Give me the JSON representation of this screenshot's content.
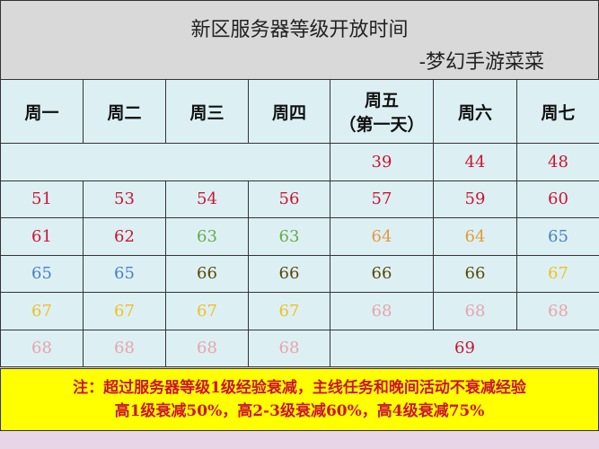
{
  "header": {
    "title": "新区服务器等级开放时间",
    "subtitle": "-梦幻手游菜菜"
  },
  "table": {
    "columns": [
      "周一",
      "周二",
      "周三",
      "周四",
      [
        "周五",
        "（第一天）"
      ],
      "周六",
      "周七"
    ],
    "rows": [
      [
        {
          "value": 39,
          "color": "#cc1430"
        },
        {
          "value": 44,
          "color": "#cc1430"
        },
        {
          "value": 48,
          "color": "#cc1430"
        }
      ],
      [
        {
          "value": 51,
          "color": "#cc1430"
        },
        {
          "value": 53,
          "color": "#cc1430"
        },
        {
          "value": 54,
          "color": "#cc1430"
        },
        {
          "value": 56,
          "color": "#cc1430"
        },
        {
          "value": 57,
          "color": "#cc1430"
        },
        {
          "value": 59,
          "color": "#cc1430"
        },
        {
          "value": 60,
          "color": "#cc1430"
        }
      ],
      [
        {
          "value": 61,
          "color": "#cc1430"
        },
        {
          "value": 62,
          "color": "#cc1430"
        },
        {
          "value": 63,
          "color": "#6aaa4a"
        },
        {
          "value": 63,
          "color": "#6aaa4a"
        },
        {
          "value": 64,
          "color": "#e39a3b"
        },
        {
          "value": 64,
          "color": "#e39a3b"
        },
        {
          "value": 65,
          "color": "#4a7fc0"
        }
      ],
      [
        {
          "value": 65,
          "color": "#4a7fc0"
        },
        {
          "value": 65,
          "color": "#4a7fc0"
        },
        {
          "value": 66,
          "color": "#5a4a08"
        },
        {
          "value": 66,
          "color": "#5a4a08"
        },
        {
          "value": 66,
          "color": "#5a4a08"
        },
        {
          "value": 66,
          "color": "#5a4a08"
        },
        {
          "value": 67,
          "color": "#f0c020"
        }
      ],
      [
        {
          "value": 67,
          "color": "#f0c020"
        },
        {
          "value": 67,
          "color": "#f0c020"
        },
        {
          "value": 67,
          "color": "#f0c020"
        },
        {
          "value": 67,
          "color": "#f0c020"
        },
        {
          "value": 68,
          "color": "#e8a4ad"
        },
        {
          "value": 68,
          "color": "#e8a4ad"
        },
        {
          "value": 68,
          "color": "#e8a4ad"
        }
      ],
      [
        {
          "value": 68,
          "color": "#e8a4ad"
        },
        {
          "value": 68,
          "color": "#e8a4ad"
        },
        {
          "value": 68,
          "color": "#e8a4ad"
        },
        {
          "value": 68,
          "color": "#e8a4ad"
        },
        {
          "value": 69,
          "color": "#cc1430"
        }
      ]
    ]
  },
  "footer": {
    "lines": [
      "注：超过服务器等级1级经验衰减，主线任务和晚间活动不衰减经验",
      "高1级衰减50%，高2-3级衰减60%，高4级衰减75%"
    ]
  }
}
